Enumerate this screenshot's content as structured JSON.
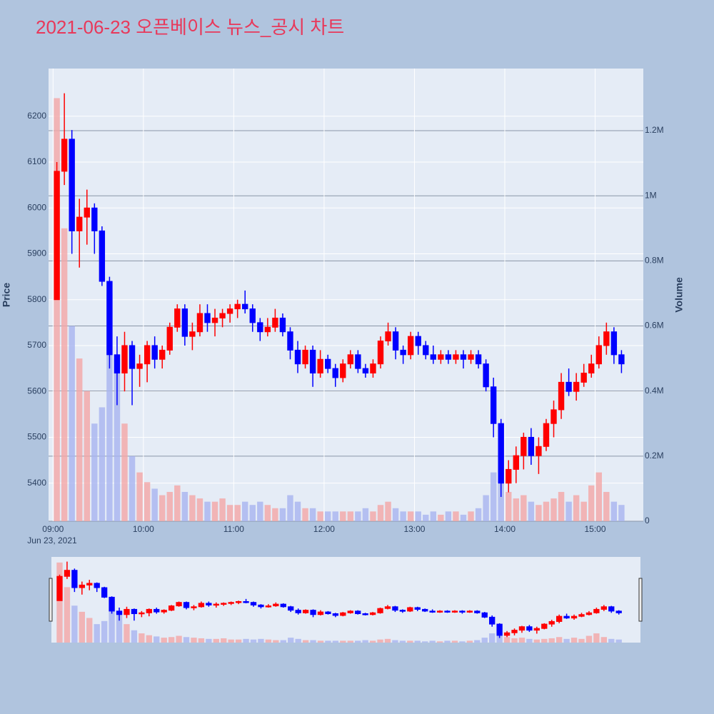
{
  "chart_data": {
    "type": "candlestick",
    "title": "2021-06-23 오픈베이스 뉴스_공시 차트",
    "y_label": "Price",
    "y2_label": "Volume",
    "x_date_label": "Jun 23, 2021",
    "x": [
      "09:00",
      "09:05",
      "09:10",
      "09:15",
      "09:20",
      "09:25",
      "09:30",
      "09:35",
      "09:40",
      "09:45",
      "09:50",
      "09:55",
      "10:00",
      "10:05",
      "10:10",
      "10:15",
      "10:20",
      "10:25",
      "10:30",
      "10:35",
      "10:40",
      "10:45",
      "10:50",
      "10:55",
      "11:00",
      "11:05",
      "11:10",
      "11:15",
      "11:20",
      "11:25",
      "11:30",
      "11:35",
      "11:40",
      "11:45",
      "11:50",
      "11:55",
      "12:00",
      "12:05",
      "12:10",
      "12:15",
      "12:20",
      "12:25",
      "12:30",
      "12:35",
      "12:40",
      "12:45",
      "12:50",
      "12:55",
      "13:00",
      "13:05",
      "13:10",
      "13:15",
      "13:20",
      "13:25",
      "13:30",
      "13:35",
      "13:40",
      "13:45",
      "13:50",
      "13:55",
      "14:00",
      "14:05",
      "14:10",
      "14:15",
      "14:20",
      "14:25",
      "14:30",
      "14:35",
      "14:40",
      "14:45",
      "14:50",
      "14:55",
      "15:00",
      "15:05",
      "15:10",
      "15:15"
    ],
    "open": [
      5800,
      6080,
      6150,
      5950,
      5980,
      6000,
      5950,
      5840,
      5680,
      5640,
      5700,
      5650,
      5660,
      5700,
      5670,
      5690,
      5740,
      5780,
      5720,
      5730,
      5770,
      5750,
      5760,
      5770,
      5780,
      5790,
      5780,
      5750,
      5730,
      5740,
      5760,
      5730,
      5690,
      5660,
      5690,
      5640,
      5670,
      5650,
      5630,
      5660,
      5680,
      5650,
      5640,
      5660,
      5710,
      5730,
      5690,
      5680,
      5720,
      5700,
      5680,
      5670,
      5680,
      5670,
      5680,
      5670,
      5680,
      5660,
      5610,
      5530,
      5400,
      5430,
      5460,
      5500,
      5460,
      5480,
      5530,
      5560,
      5620,
      5600,
      5620,
      5640,
      5660,
      5700,
      5730,
      5680
    ],
    "high": [
      6100,
      6250,
      6170,
      6020,
      6040,
      6010,
      5960,
      5850,
      5720,
      5730,
      5710,
      5680,
      5710,
      5720,
      5700,
      5750,
      5790,
      5790,
      5750,
      5790,
      5790,
      5780,
      5780,
      5790,
      5800,
      5820,
      5790,
      5760,
      5760,
      5780,
      5770,
      5740,
      5710,
      5700,
      5700,
      5690,
      5680,
      5660,
      5670,
      5690,
      5690,
      5660,
      5670,
      5720,
      5750,
      5740,
      5700,
      5730,
      5730,
      5710,
      5700,
      5690,
      5690,
      5690,
      5690,
      5690,
      5690,
      5670,
      5630,
      5540,
      5450,
      5480,
      5510,
      5520,
      5500,
      5540,
      5580,
      5640,
      5650,
      5640,
      5660,
      5680,
      5720,
      5750,
      5740,
      5690
    ],
    "low": [
      5800,
      6050,
      5900,
      5870,
      5920,
      5900,
      5830,
      5650,
      5570,
      5600,
      5570,
      5610,
      5620,
      5650,
      5650,
      5680,
      5730,
      5700,
      5690,
      5720,
      5730,
      5720,
      5740,
      5750,
      5760,
      5770,
      5730,
      5710,
      5720,
      5730,
      5720,
      5670,
      5640,
      5650,
      5610,
      5630,
      5640,
      5610,
      5620,
      5650,
      5640,
      5630,
      5630,
      5650,
      5700,
      5670,
      5660,
      5670,
      5680,
      5670,
      5660,
      5660,
      5660,
      5660,
      5650,
      5660,
      5650,
      5600,
      5500,
      5370,
      5380,
      5400,
      5430,
      5440,
      5420,
      5470,
      5500,
      5540,
      5590,
      5580,
      5610,
      5630,
      5650,
      5680,
      5660,
      5640
    ],
    "close": [
      6080,
      6150,
      5950,
      5980,
      6000,
      5950,
      5840,
      5680,
      5640,
      5700,
      5650,
      5660,
      5700,
      5670,
      5690,
      5740,
      5780,
      5720,
      5730,
      5770,
      5750,
      5760,
      5770,
      5780,
      5790,
      5780,
      5750,
      5730,
      5740,
      5760,
      5730,
      5690,
      5660,
      5690,
      5640,
      5670,
      5650,
      5630,
      5660,
      5680,
      5650,
      5640,
      5660,
      5710,
      5730,
      5690,
      5680,
      5720,
      5700,
      5680,
      5670,
      5680,
      5670,
      5680,
      5670,
      5680,
      5660,
      5610,
      5530,
      5400,
      5430,
      5460,
      5500,
      5460,
      5480,
      5530,
      5560,
      5620,
      5600,
      5620,
      5640,
      5660,
      5700,
      5730,
      5680,
      5660
    ],
    "volume": [
      1300000,
      900000,
      600000,
      500000,
      400000,
      300000,
      350000,
      700000,
      500000,
      300000,
      200000,
      150000,
      120000,
      100000,
      80000,
      90000,
      110000,
      90000,
      80000,
      70000,
      60000,
      60000,
      70000,
      50000,
      50000,
      60000,
      50000,
      60000,
      50000,
      40000,
      40000,
      80000,
      60000,
      40000,
      40000,
      30000,
      30000,
      30000,
      30000,
      30000,
      30000,
      40000,
      30000,
      50000,
      60000,
      40000,
      30000,
      30000,
      30000,
      20000,
      30000,
      20000,
      30000,
      30000,
      20000,
      30000,
      40000,
      80000,
      150000,
      120000,
      90000,
      70000,
      80000,
      60000,
      50000,
      60000,
      70000,
      90000,
      60000,
      80000,
      60000,
      110000,
      150000,
      90000,
      60000,
      50000
    ],
    "increasing_color": "#ff0000",
    "decreasing_color": "#0000ff",
    "volume_increasing_color": "#f4a6a6",
    "volume_decreasing_color": "#a8b4f0",
    "xlim": [
      "08:57",
      "15:32"
    ],
    "xticks": [
      "09:00",
      "10:00",
      "11:00",
      "12:00",
      "13:00",
      "14:00",
      "15:00"
    ],
    "ylim": [
      5317,
      6304
    ],
    "yticks": [
      5400,
      5500,
      5600,
      5700,
      5800,
      5900,
      6000,
      6100,
      6200
    ],
    "y2lim": [
      0,
      1391000
    ],
    "y2ticks": [
      0,
      {
        "value": 200000,
        "label": "0.2M"
      },
      {
        "value": 400000,
        "label": "0.4M"
      },
      {
        "value": 600000,
        "label": "0.6M"
      },
      {
        "value": 800000,
        "label": "0.8M"
      },
      {
        "value": 1000000,
        "label": "1M"
      },
      {
        "value": 1200000,
        "label": "1.2M"
      }
    ],
    "grid": true
  }
}
